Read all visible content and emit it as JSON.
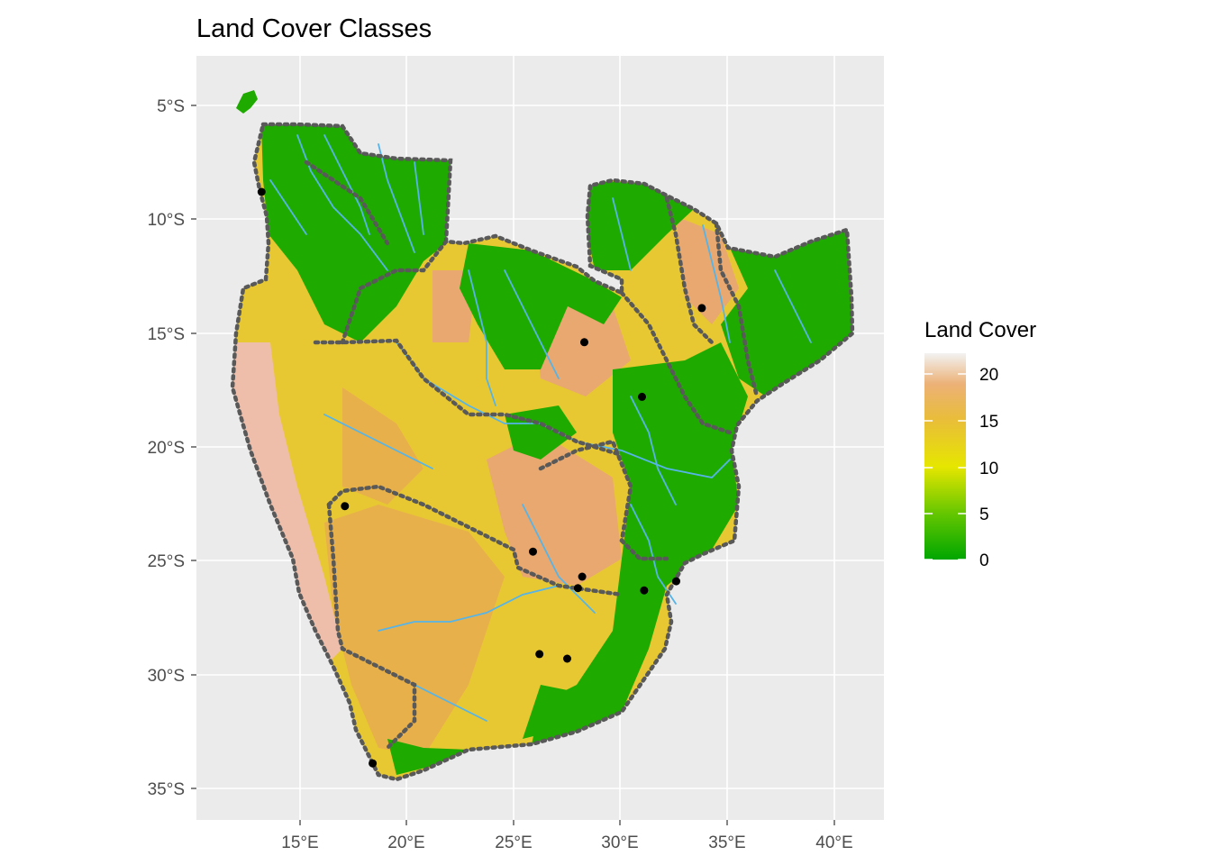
{
  "title": "Land Cover Classes",
  "colors": {
    "panel_bg": "#ebebeb",
    "grid": "#ffffff",
    "rivers": "#56b4e9",
    "borders": "#595959",
    "points": "#000000",
    "dry_land": "#e8c832",
    "semi_arid": "#e8b04a",
    "coastal_desert": "#eebeaa",
    "forest": "#1faa00",
    "shrub": "#e8a870"
  },
  "axes": {
    "x_labels": [
      "15°E",
      "20°E",
      "25°E",
      "30°E",
      "35°E",
      "40°E"
    ],
    "y_labels": [
      "5°S",
      "10°S",
      "15°S",
      "20°S",
      "25°S",
      "30°S",
      "35°S"
    ]
  },
  "legend": {
    "title": "Land Cover",
    "scale": "continuous",
    "range": [
      0,
      22
    ],
    "labels": [
      "20",
      "15",
      "10",
      "5",
      "0"
    ],
    "gradient_stops": [
      "#00a600",
      "#63c600",
      "#e6e600",
      "#e9bd3a",
      "#ecb176",
      "#f2f2f2"
    ]
  },
  "chart_data": {
    "type": "map",
    "x_range_deg_e": [
      10.5,
      42.6
    ],
    "y_range_deg_s": [
      3.2,
      36.4
    ],
    "points": [
      {
        "lon": 13.2,
        "lat": -8.8
      },
      {
        "lon": 17.1,
        "lat": -22.6
      },
      {
        "lon": 18.4,
        "lat": -33.9
      },
      {
        "lon": 25.9,
        "lat": -24.6
      },
      {
        "lon": 26.2,
        "lat": -29.1
      },
      {
        "lon": 27.5,
        "lat": -29.3
      },
      {
        "lon": 28.0,
        "lat": -26.2
      },
      {
        "lon": 28.2,
        "lat": -25.7
      },
      {
        "lon": 28.3,
        "lat": -15.4
      },
      {
        "lon": 31.0,
        "lat": -17.8
      },
      {
        "lon": 31.1,
        "lat": -26.3
      },
      {
        "lon": 32.6,
        "lat": -25.9
      },
      {
        "lon": 33.8,
        "lat": -13.9
      }
    ]
  }
}
